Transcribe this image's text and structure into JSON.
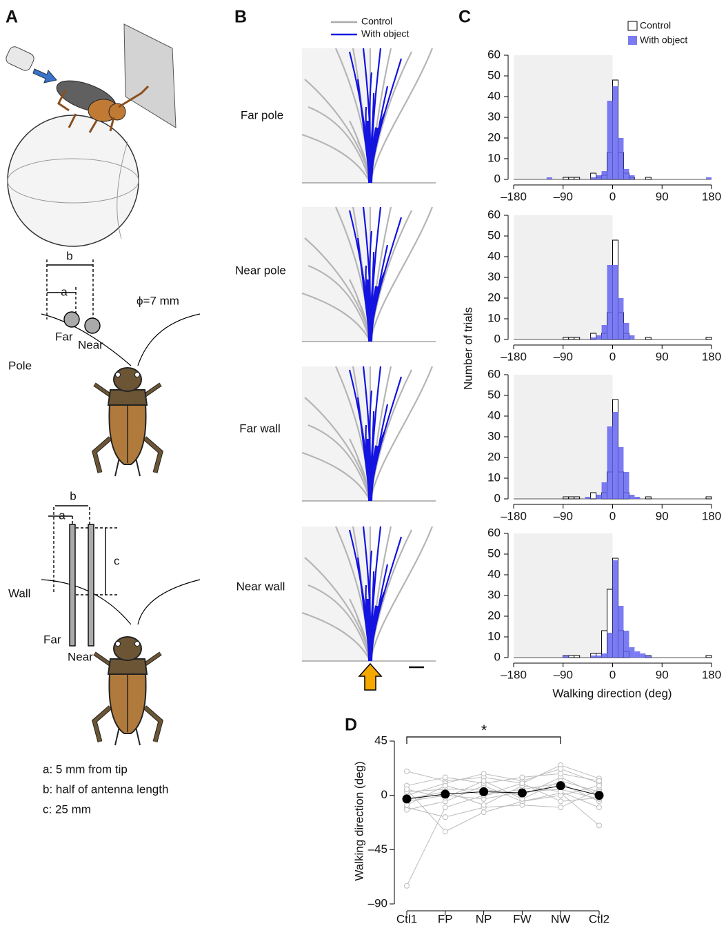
{
  "panel_labels": [
    "A",
    "B",
    "C",
    "D"
  ],
  "panel_a": {
    "pole_dims": [
      "b",
      "a"
    ],
    "diameter": "ϕ=7 mm",
    "pole_labels": [
      "Far",
      "Near"
    ],
    "rows": [
      "Pole",
      "Wall"
    ],
    "wall_dims": [
      "b",
      "a",
      "c"
    ],
    "wall_labels": [
      "Far",
      "Near"
    ],
    "notes": [
      "a: 5 mm from tip",
      "b: half of antenna length",
      "c: 25 mm"
    ]
  },
  "panel_b": {
    "legend": [
      "Control",
      "With object"
    ],
    "rows": [
      "Far pole",
      "Near pole",
      "Far wall",
      "Near wall"
    ]
  },
  "chart_data": [
    {
      "type": "histogram",
      "bins": [
        -180,
        -170,
        -160,
        -150,
        -140,
        -130,
        -120,
        -110,
        -100,
        -90,
        -80,
        -70,
        -60,
        -50,
        -40,
        -30,
        -20,
        -10,
        0,
        10,
        20,
        30,
        40,
        50,
        60,
        70,
        80,
        90,
        100,
        110,
        120,
        130,
        140,
        150,
        160,
        170,
        180
      ],
      "series": [
        {
          "name": "Control",
          "color": "#ffffff",
          "edgecolor": "#000000",
          "values": [
            0,
            0,
            0,
            0,
            0,
            0,
            0,
            0,
            0,
            1,
            1,
            1,
            0,
            0,
            3,
            1,
            2,
            13,
            48,
            13,
            3,
            1,
            0,
            0,
            1,
            0,
            0,
            0,
            0,
            0,
            0,
            0,
            0,
            0,
            0,
            0
          ]
        },
        {
          "name": "With object",
          "color": "#6464f0",
          "values": [
            0,
            0,
            0,
            0,
            0,
            0,
            1,
            0,
            0,
            0,
            0,
            0,
            0,
            0,
            1,
            2,
            4,
            38,
            45,
            20,
            5,
            2,
            0,
            0,
            0,
            0,
            0,
            0,
            0,
            0,
            0,
            0,
            0,
            0,
            0,
            1
          ]
        }
      ],
      "xlim": [
        -180,
        180
      ],
      "xticks": [
        {
          "value": -180,
          "label": "–180"
        },
        {
          "value": -90,
          "label": "–90"
        },
        0,
        90,
        180
      ],
      "ylim": [
        0,
        60
      ],
      "yticks": [
        0,
        10,
        20,
        30,
        40,
        50,
        60
      ]
    },
    {
      "type": "histogram",
      "bins": [
        -180,
        -170,
        -160,
        -150,
        -140,
        -130,
        -120,
        -110,
        -100,
        -90,
        -80,
        -70,
        -60,
        -50,
        -40,
        -30,
        -20,
        -10,
        0,
        10,
        20,
        30,
        40,
        50,
        60,
        70,
        80,
        90,
        100,
        110,
        120,
        130,
        140,
        150,
        160,
        170,
        180
      ],
      "series": [
        {
          "name": "Control",
          "color": "#ffffff",
          "edgecolor": "#000000",
          "values": [
            0,
            0,
            0,
            0,
            0,
            0,
            0,
            0,
            0,
            1,
            1,
            1,
            0,
            0,
            3,
            0,
            3,
            13,
            48,
            13,
            3,
            0,
            0,
            0,
            1,
            0,
            0,
            0,
            0,
            0,
            0,
            0,
            0,
            0,
            0,
            1
          ]
        },
        {
          "name": "With object",
          "color": "#6464f0",
          "values": [
            0,
            0,
            0,
            0,
            0,
            0,
            0,
            0,
            0,
            0,
            0,
            0,
            0,
            0,
            1,
            2,
            7,
            36,
            36,
            20,
            8,
            2,
            0,
            0,
            0,
            0,
            0,
            0,
            0,
            0,
            0,
            0,
            0,
            0,
            0,
            0
          ]
        }
      ],
      "xlim": [
        -180,
        180
      ],
      "xticks": [
        {
          "value": -180,
          "label": "–180"
        },
        {
          "value": -90,
          "label": "–90"
        },
        0,
        90,
        180
      ],
      "ylim": [
        0,
        60
      ],
      "yticks": [
        0,
        10,
        20,
        30,
        40,
        50,
        60
      ],
      "ylabel": "Number of trials"
    },
    {
      "type": "histogram",
      "bins": [
        -180,
        -170,
        -160,
        -150,
        -140,
        -130,
        -120,
        -110,
        -100,
        -90,
        -80,
        -70,
        -60,
        -50,
        -40,
        -30,
        -20,
        -10,
        0,
        10,
        20,
        30,
        40,
        50,
        60,
        70,
        80,
        90,
        100,
        110,
        120,
        130,
        140,
        150,
        160,
        170,
        180
      ],
      "series": [
        {
          "name": "Control",
          "color": "#ffffff",
          "edgecolor": "#000000",
          "values": [
            0,
            0,
            0,
            0,
            0,
            0,
            0,
            0,
            0,
            1,
            1,
            1,
            0,
            0,
            3,
            0,
            3,
            13,
            48,
            13,
            3,
            0,
            0,
            0,
            1,
            0,
            0,
            0,
            0,
            0,
            0,
            0,
            0,
            0,
            0,
            1
          ]
        },
        {
          "name": "With object",
          "color": "#6464f0",
          "values": [
            0,
            0,
            0,
            0,
            0,
            0,
            0,
            0,
            0,
            0,
            0,
            0,
            0,
            1,
            0,
            2,
            8,
            35,
            42,
            25,
            13,
            2,
            1,
            0,
            0,
            0,
            0,
            0,
            0,
            0,
            0,
            0,
            0,
            0,
            0,
            0
          ]
        }
      ],
      "xlim": [
        -180,
        180
      ],
      "xticks": [
        {
          "value": -180,
          "label": "–180"
        },
        {
          "value": -90,
          "label": "–90"
        },
        0,
        90,
        180
      ],
      "ylim": [
        0,
        60
      ],
      "yticks": [
        0,
        10,
        20,
        30,
        40,
        50,
        60
      ]
    },
    {
      "type": "histogram",
      "bins": [
        -180,
        -170,
        -160,
        -150,
        -140,
        -130,
        -120,
        -110,
        -100,
        -90,
        -80,
        -70,
        -60,
        -50,
        -40,
        -30,
        -20,
        -10,
        0,
        10,
        20,
        30,
        40,
        50,
        60,
        70,
        80,
        90,
        100,
        110,
        120,
        130,
        140,
        150,
        160,
        170,
        180
      ],
      "series": [
        {
          "name": "Control",
          "color": "#ffffff",
          "edgecolor": "#000000",
          "values": [
            0,
            0,
            0,
            0,
            0,
            0,
            0,
            0,
            0,
            1,
            1,
            1,
            0,
            0,
            2,
            2,
            13,
            33,
            48,
            13,
            3,
            0,
            0,
            0,
            1,
            0,
            0,
            0,
            0,
            0,
            0,
            0,
            0,
            0,
            0,
            1
          ]
        },
        {
          "name": "With object",
          "color": "#6464f0",
          "values": [
            0,
            0,
            0,
            0,
            0,
            0,
            0,
            0,
            0,
            1,
            0,
            0,
            0,
            0,
            1,
            1,
            2,
            12,
            47,
            25,
            13,
            5,
            3,
            2,
            1,
            0,
            0,
            0,
            0,
            0,
            0,
            0,
            0,
            0,
            0,
            0
          ]
        }
      ],
      "xlim": [
        -180,
        180
      ],
      "xticks": [
        {
          "value": -180,
          "label": "–180"
        },
        {
          "value": -90,
          "label": "–90"
        },
        0,
        90,
        180
      ],
      "ylim": [
        0,
        60
      ],
      "yticks": [
        0,
        10,
        20,
        30,
        40,
        50,
        60
      ],
      "xlabel": "Walking direction (deg)"
    },
    {
      "type": "line",
      "categories": [
        "Ctl1",
        "FP",
        "NP",
        "FW",
        "NW",
        "Ctl2"
      ],
      "ylim": [
        -90,
        45
      ],
      "yticks": [
        {
          "value": -90,
          "label": "–90"
        },
        {
          "value": -45,
          "label": "–45"
        },
        0,
        45
      ],
      "ylabel": "Walking direction (deg)",
      "annotation": "*",
      "series": [
        {
          "color": "#bbbbbb",
          "marker_fill": "#ffffff",
          "values": [
            20,
            12,
            15,
            10,
            25,
            14
          ]
        },
        {
          "color": "#bbbbbb",
          "marker_fill": "#ffffff",
          "values": [
            -75,
            -10,
            0,
            5,
            10,
            -5
          ]
        },
        {
          "color": "#bbbbbb",
          "marker_fill": "#ffffff",
          "values": [
            5,
            -30,
            -14,
            -5,
            2,
            -25
          ]
        },
        {
          "color": "#bbbbbb",
          "marker_fill": "#ffffff",
          "values": [
            -10,
            -18,
            -10,
            -8,
            -10,
            5
          ]
        },
        {
          "color": "#bbbbbb",
          "marker_fill": "#ffffff",
          "values": [
            0,
            10,
            18,
            12,
            22,
            10
          ]
        },
        {
          "color": "#bbbbbb",
          "marker_fill": "#ffffff",
          "values": [
            3,
            5,
            5,
            0,
            15,
            0
          ]
        },
        {
          "color": "#bbbbbb",
          "marker_fill": "#ffffff",
          "values": [
            -5,
            0,
            -3,
            3,
            5,
            -3
          ]
        },
        {
          "color": "#bbbbbb",
          "marker_fill": "#ffffff",
          "values": [
            -12,
            -5,
            8,
            -5,
            0,
            8
          ]
        },
        {
          "color": "#bbbbbb",
          "marker_fill": "#ffffff",
          "values": [
            8,
            15,
            10,
            15,
            18,
            12
          ]
        },
        {
          "color": "#bbbbbb",
          "marker_fill": "#ffffff",
          "values": [
            -3,
            3,
            -8,
            8,
            3,
            -10
          ]
        },
        {
          "color": "#bbbbbb",
          "marker_fill": "#ffffff",
          "values": [
            5,
            -2,
            12,
            -3,
            12,
            3
          ]
        },
        {
          "color": "#bbbbbb",
          "marker_fill": "#ffffff",
          "values": [
            -8,
            8,
            0,
            10,
            -5,
            -2
          ]
        },
        {
          "color": "#000000",
          "marker_fill": "#000000",
          "values": [
            -3,
            1,
            3,
            2,
            8,
            0
          ]
        }
      ]
    }
  ]
}
